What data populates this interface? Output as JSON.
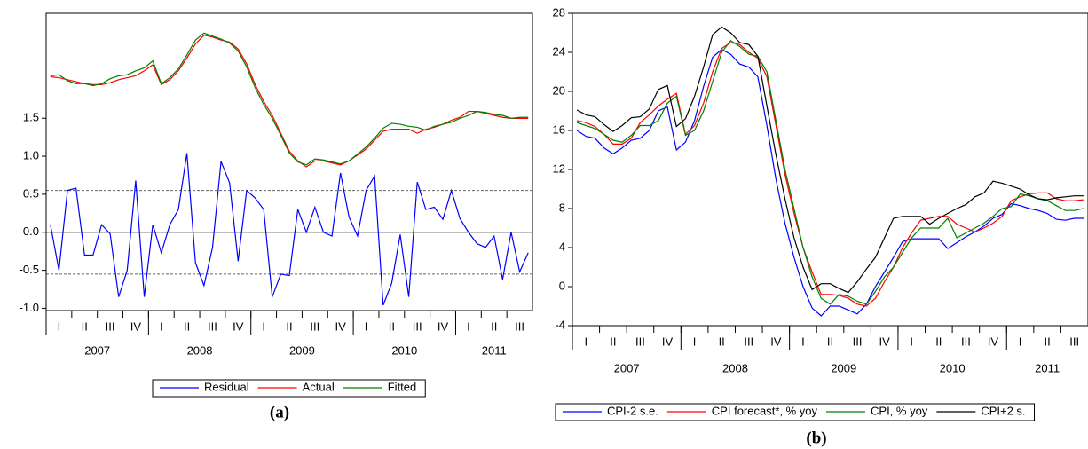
{
  "chart_data": [
    {
      "type": "line",
      "caption": "(a)",
      "categories": [
        null,
        "I",
        null,
        null,
        "II",
        null,
        null,
        "III",
        null,
        null,
        "IV",
        null,
        null,
        "I",
        null,
        null,
        "II",
        null,
        null,
        "III",
        null,
        null,
        "IV",
        null,
        null,
        "I",
        null,
        null,
        "II",
        null,
        null,
        "III",
        null,
        null,
        "IV",
        null,
        null,
        "I",
        null,
        null,
        "II",
        null,
        null,
        "III",
        null,
        null,
        "IV",
        null,
        null,
        "I",
        null,
        null,
        "II",
        null,
        null,
        "III",
        null
      ],
      "year_labels": [
        "2007",
        "2008",
        "2009",
        "2010",
        "2011"
      ],
      "ylim": [
        -1.03,
        2.88
      ],
      "yticks": [
        {
          "value": -1,
          "label": "-1.0"
        },
        {
          "value": -0.5,
          "label": "-0.5"
        },
        {
          "value": 0,
          "label": "0.0"
        },
        {
          "value": 0.5,
          "label": "0.5"
        },
        {
          "value": 1,
          "label": "1.0"
        },
        {
          "value": 1.5,
          "label": "1.5"
        }
      ],
      "y2lim": [
        0,
        30
      ],
      "reference_lines": [
        -0.55,
        0,
        0.55
      ],
      "series": [
        {
          "name": "Residual",
          "color": "#0000ff",
          "values": [
            0.1,
            -0.5,
            0.55,
            0.58,
            -0.3,
            -0.3,
            0.1,
            -0.02,
            -0.85,
            -0.5,
            0.68,
            -0.85,
            0.1,
            -0.27,
            0.1,
            0.3,
            1.04,
            -0.4,
            -0.7,
            -0.2,
            0.93,
            0.65,
            -0.38,
            0.55,
            0.45,
            0.3,
            -0.85,
            -0.55,
            -0.57,
            0.3,
            0.0,
            0.33,
            0.0,
            -0.05,
            0.78,
            0.2,
            -0.05,
            0.55,
            0.74,
            -0.96,
            -0.67,
            -0.03,
            -0.85,
            0.66,
            0.3,
            0.33,
            0.17,
            0.55,
            0.18,
            0.0,
            -0.15,
            -0.2,
            -0.05,
            -0.62,
            0.0,
            -0.52,
            -0.27
          ]
        },
        {
          "name": "Actual",
          "color": "#ff0000",
          "axis": "y2",
          "values": [
            23.6,
            23.5,
            23.3,
            23.1,
            22.9,
            22.8,
            22.8,
            23.0,
            23.3,
            23.5,
            23.7,
            24.2,
            24.8,
            22.8,
            23.3,
            24.2,
            25.5,
            26.9,
            27.8,
            27.6,
            27.3,
            27.1,
            26.4,
            24.9,
            22.8,
            21.1,
            19.7,
            17.9,
            16.1,
            15.1,
            14.5,
            15.1,
            15.1,
            14.9,
            14.7,
            15.1,
            15.7,
            16.3,
            17.2,
            18.1,
            18.3,
            18.3,
            18.3,
            17.9,
            18.3,
            18.5,
            18.8,
            19.2,
            19.5,
            20.1,
            20.1,
            19.9,
            19.7,
            19.5,
            19.4,
            19.4,
            19.4
          ]
        },
        {
          "name": "Fitted",
          "color": "#008000",
          "axis": "y2",
          "values": [
            23.7,
            23.8,
            23.2,
            22.9,
            22.9,
            22.7,
            22.9,
            23.4,
            23.7,
            23.8,
            24.2,
            24.5,
            25.2,
            22.9,
            23.5,
            24.4,
            25.8,
            27.3,
            28.0,
            27.7,
            27.4,
            27.0,
            26.2,
            24.6,
            22.5,
            20.8,
            19.4,
            17.7,
            15.9,
            15.0,
            14.7,
            15.3,
            15.2,
            15.0,
            14.8,
            15.1,
            15.8,
            16.5,
            17.4,
            18.4,
            18.9,
            18.8,
            18.6,
            18.5,
            18.2,
            18.6,
            18.8,
            19.0,
            19.4,
            19.7,
            20.1,
            20.0,
            19.8,
            19.7,
            19.4,
            19.5,
            19.5
          ]
        }
      ]
    },
    {
      "type": "line",
      "caption": "(b)",
      "categories": [
        null,
        "I",
        null,
        null,
        "II",
        null,
        null,
        "III",
        null,
        null,
        "IV",
        null,
        null,
        "I",
        null,
        null,
        "II",
        null,
        null,
        "III",
        null,
        null,
        "IV",
        null,
        null,
        "I",
        null,
        null,
        "II",
        null,
        null,
        "III",
        null,
        null,
        "IV",
        null,
        null,
        "I",
        null,
        null,
        "II",
        null,
        null,
        "III",
        null,
        null,
        "IV",
        null,
        null,
        "I",
        null,
        null,
        "II",
        null,
        null,
        "III",
        null
      ],
      "year_labels": [
        "2007",
        "2008",
        "2009",
        "2010",
        "2011"
      ],
      "ylim": [
        -4,
        28
      ],
      "yticks": [
        -4,
        0,
        4,
        8,
        12,
        16,
        20,
        24,
        28
      ],
      "series": [
        {
          "name": "CPI-2 s.e.",
          "color": "#0000ff",
          "values": [
            16.0,
            15.4,
            15.2,
            14.2,
            13.6,
            14.2,
            15.0,
            15.2,
            16.0,
            18.0,
            18.4,
            14.0,
            14.8,
            17.0,
            20.5,
            23.5,
            24.3,
            23.8,
            22.8,
            22.5,
            21.5,
            16.5,
            11.0,
            6.5,
            3.0,
            0.0,
            -2.2,
            -3.0,
            -2.0,
            -2.0,
            -2.4,
            -2.8,
            -1.8,
            0.0,
            1.5,
            3.0,
            4.6,
            4.9,
            4.9,
            4.9,
            4.9,
            3.9,
            4.5,
            5.1,
            5.6,
            6.2,
            7.0,
            7.4,
            8.5,
            8.3,
            8.0,
            7.8,
            7.5,
            6.9,
            6.8,
            7.0,
            7.0
          ]
        },
        {
          "name": "CPI forecast*, % yoy",
          "color": "#ff0000",
          "values": [
            17.0,
            16.8,
            16.4,
            15.6,
            14.6,
            14.6,
            15.2,
            16.8,
            17.6,
            18.5,
            19.2,
            19.8,
            15.6,
            16.5,
            18.8,
            22.0,
            24.4,
            25.0,
            24.8,
            24.0,
            23.4,
            21.5,
            16.5,
            11.5,
            7.5,
            4.0,
            1.5,
            -0.8,
            -0.8,
            -0.9,
            -1.2,
            -1.8,
            -2.0,
            -1.2,
            0.5,
            2.0,
            4.0,
            5.5,
            6.8,
            7.0,
            7.2,
            7.2,
            6.4,
            6.0,
            5.6,
            6.0,
            6.5,
            7.2,
            8.8,
            9.2,
            9.5,
            9.6,
            9.6,
            9.0,
            8.8,
            8.8,
            8.9
          ]
        },
        {
          "name": "CPI, % yoy",
          "color": "#008000",
          "values": [
            16.8,
            16.5,
            16.2,
            15.6,
            15.0,
            14.8,
            15.5,
            16.5,
            16.5,
            17.0,
            18.8,
            19.5,
            15.5,
            16.0,
            18.0,
            21.0,
            24.0,
            25.2,
            24.6,
            23.8,
            23.6,
            22.0,
            17.0,
            12.0,
            8.0,
            4.0,
            1.0,
            -1.2,
            -1.8,
            -0.8,
            -1.0,
            -1.5,
            -1.8,
            -0.5,
            1.0,
            2.0,
            3.5,
            5.0,
            6.0,
            6.0,
            6.0,
            7.0,
            5.0,
            5.5,
            6.0,
            6.5,
            7.2,
            8.0,
            8.2,
            9.5,
            9.3,
            9.0,
            8.8,
            8.3,
            7.8,
            7.8,
            8.0
          ]
        },
        {
          "name": "CPI+2 s.",
          "color": "#000000",
          "values": [
            18.1,
            17.6,
            17.4,
            16.6,
            15.9,
            16.5,
            17.3,
            17.4,
            18.2,
            20.2,
            20.6,
            16.4,
            17.2,
            19.5,
            22.5,
            25.8,
            26.6,
            26.0,
            25.0,
            24.8,
            23.6,
            18.5,
            13.5,
            9.0,
            5.0,
            2.0,
            -0.3,
            0.3,
            0.3,
            -0.2,
            -0.6,
            0.5,
            1.8,
            3.0,
            5.0,
            7.0,
            7.2,
            7.2,
            7.2,
            6.4,
            7.0,
            7.5,
            8.0,
            8.4,
            9.2,
            9.6,
            10.8,
            10.6,
            10.3,
            10.0,
            9.4,
            9.0,
            8.9,
            9.1,
            9.2,
            9.3,
            9.3
          ]
        }
      ]
    }
  ]
}
